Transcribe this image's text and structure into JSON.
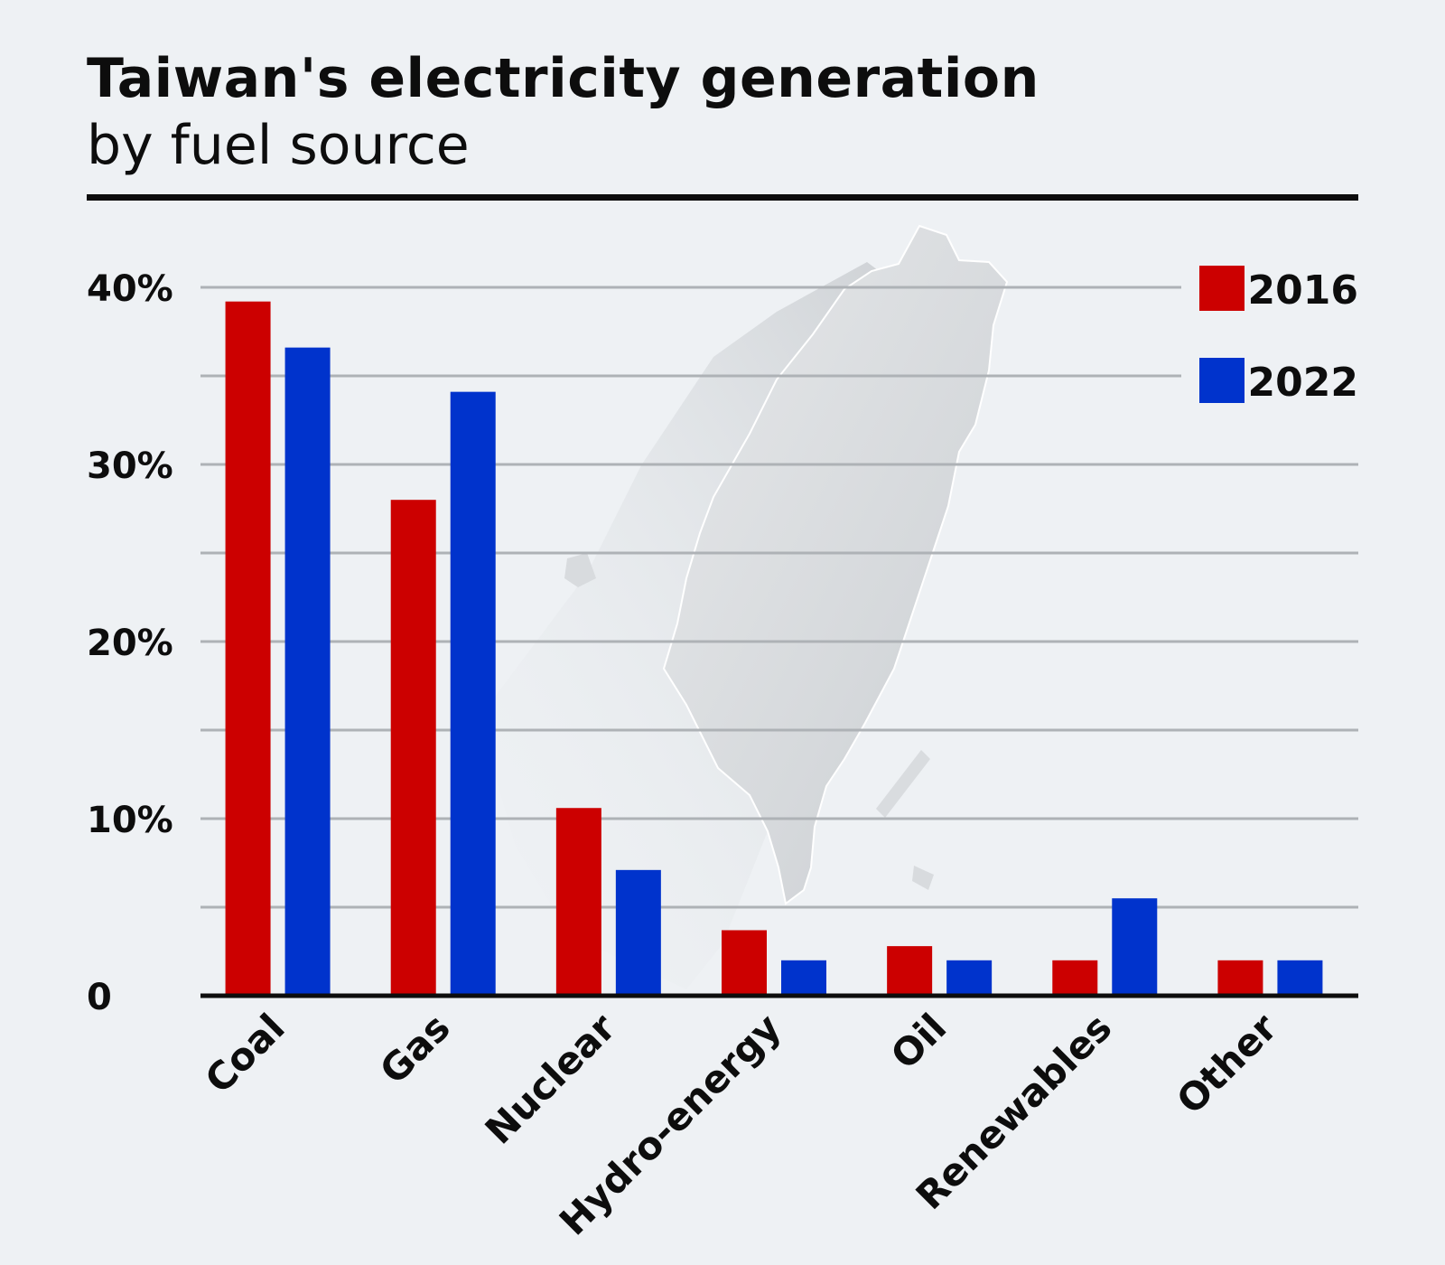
{
  "header": {
    "title": "Taiwan's electricity generation",
    "subtitle": "by fuel source"
  },
  "chart_data": {
    "type": "bar",
    "title": "Taiwan's electricity generation",
    "subtitle": "by fuel source",
    "xlabel": "",
    "ylabel": "",
    "categories": [
      "Coal",
      "Gas",
      "Nuclear",
      "Hydro-energy",
      "Oil",
      "Renewables",
      "Other"
    ],
    "series": [
      {
        "name": "2016",
        "color": "#cc0000",
        "values": [
          39.2,
          28.0,
          10.6,
          3.7,
          2.8,
          2.0,
          2.0
        ]
      },
      {
        "name": "2022",
        "color": "#0033cc",
        "values": [
          36.6,
          34.1,
          7.1,
          2.0,
          2.0,
          5.5,
          2.0
        ]
      }
    ],
    "ylim": [
      0,
      40
    ],
    "yticks": [
      {
        "value": 0,
        "label": "0"
      },
      {
        "value": 10,
        "label": "10%"
      },
      {
        "value": 20,
        "label": "20%"
      },
      {
        "value": 30,
        "label": "30%"
      },
      {
        "value": 40,
        "label": "40%"
      }
    ],
    "gridlines": [
      5,
      10,
      15,
      20,
      25,
      30,
      35,
      40
    ],
    "grid": true,
    "legend_position": "top-right",
    "background_image": "taiwan-map-silhouette"
  }
}
